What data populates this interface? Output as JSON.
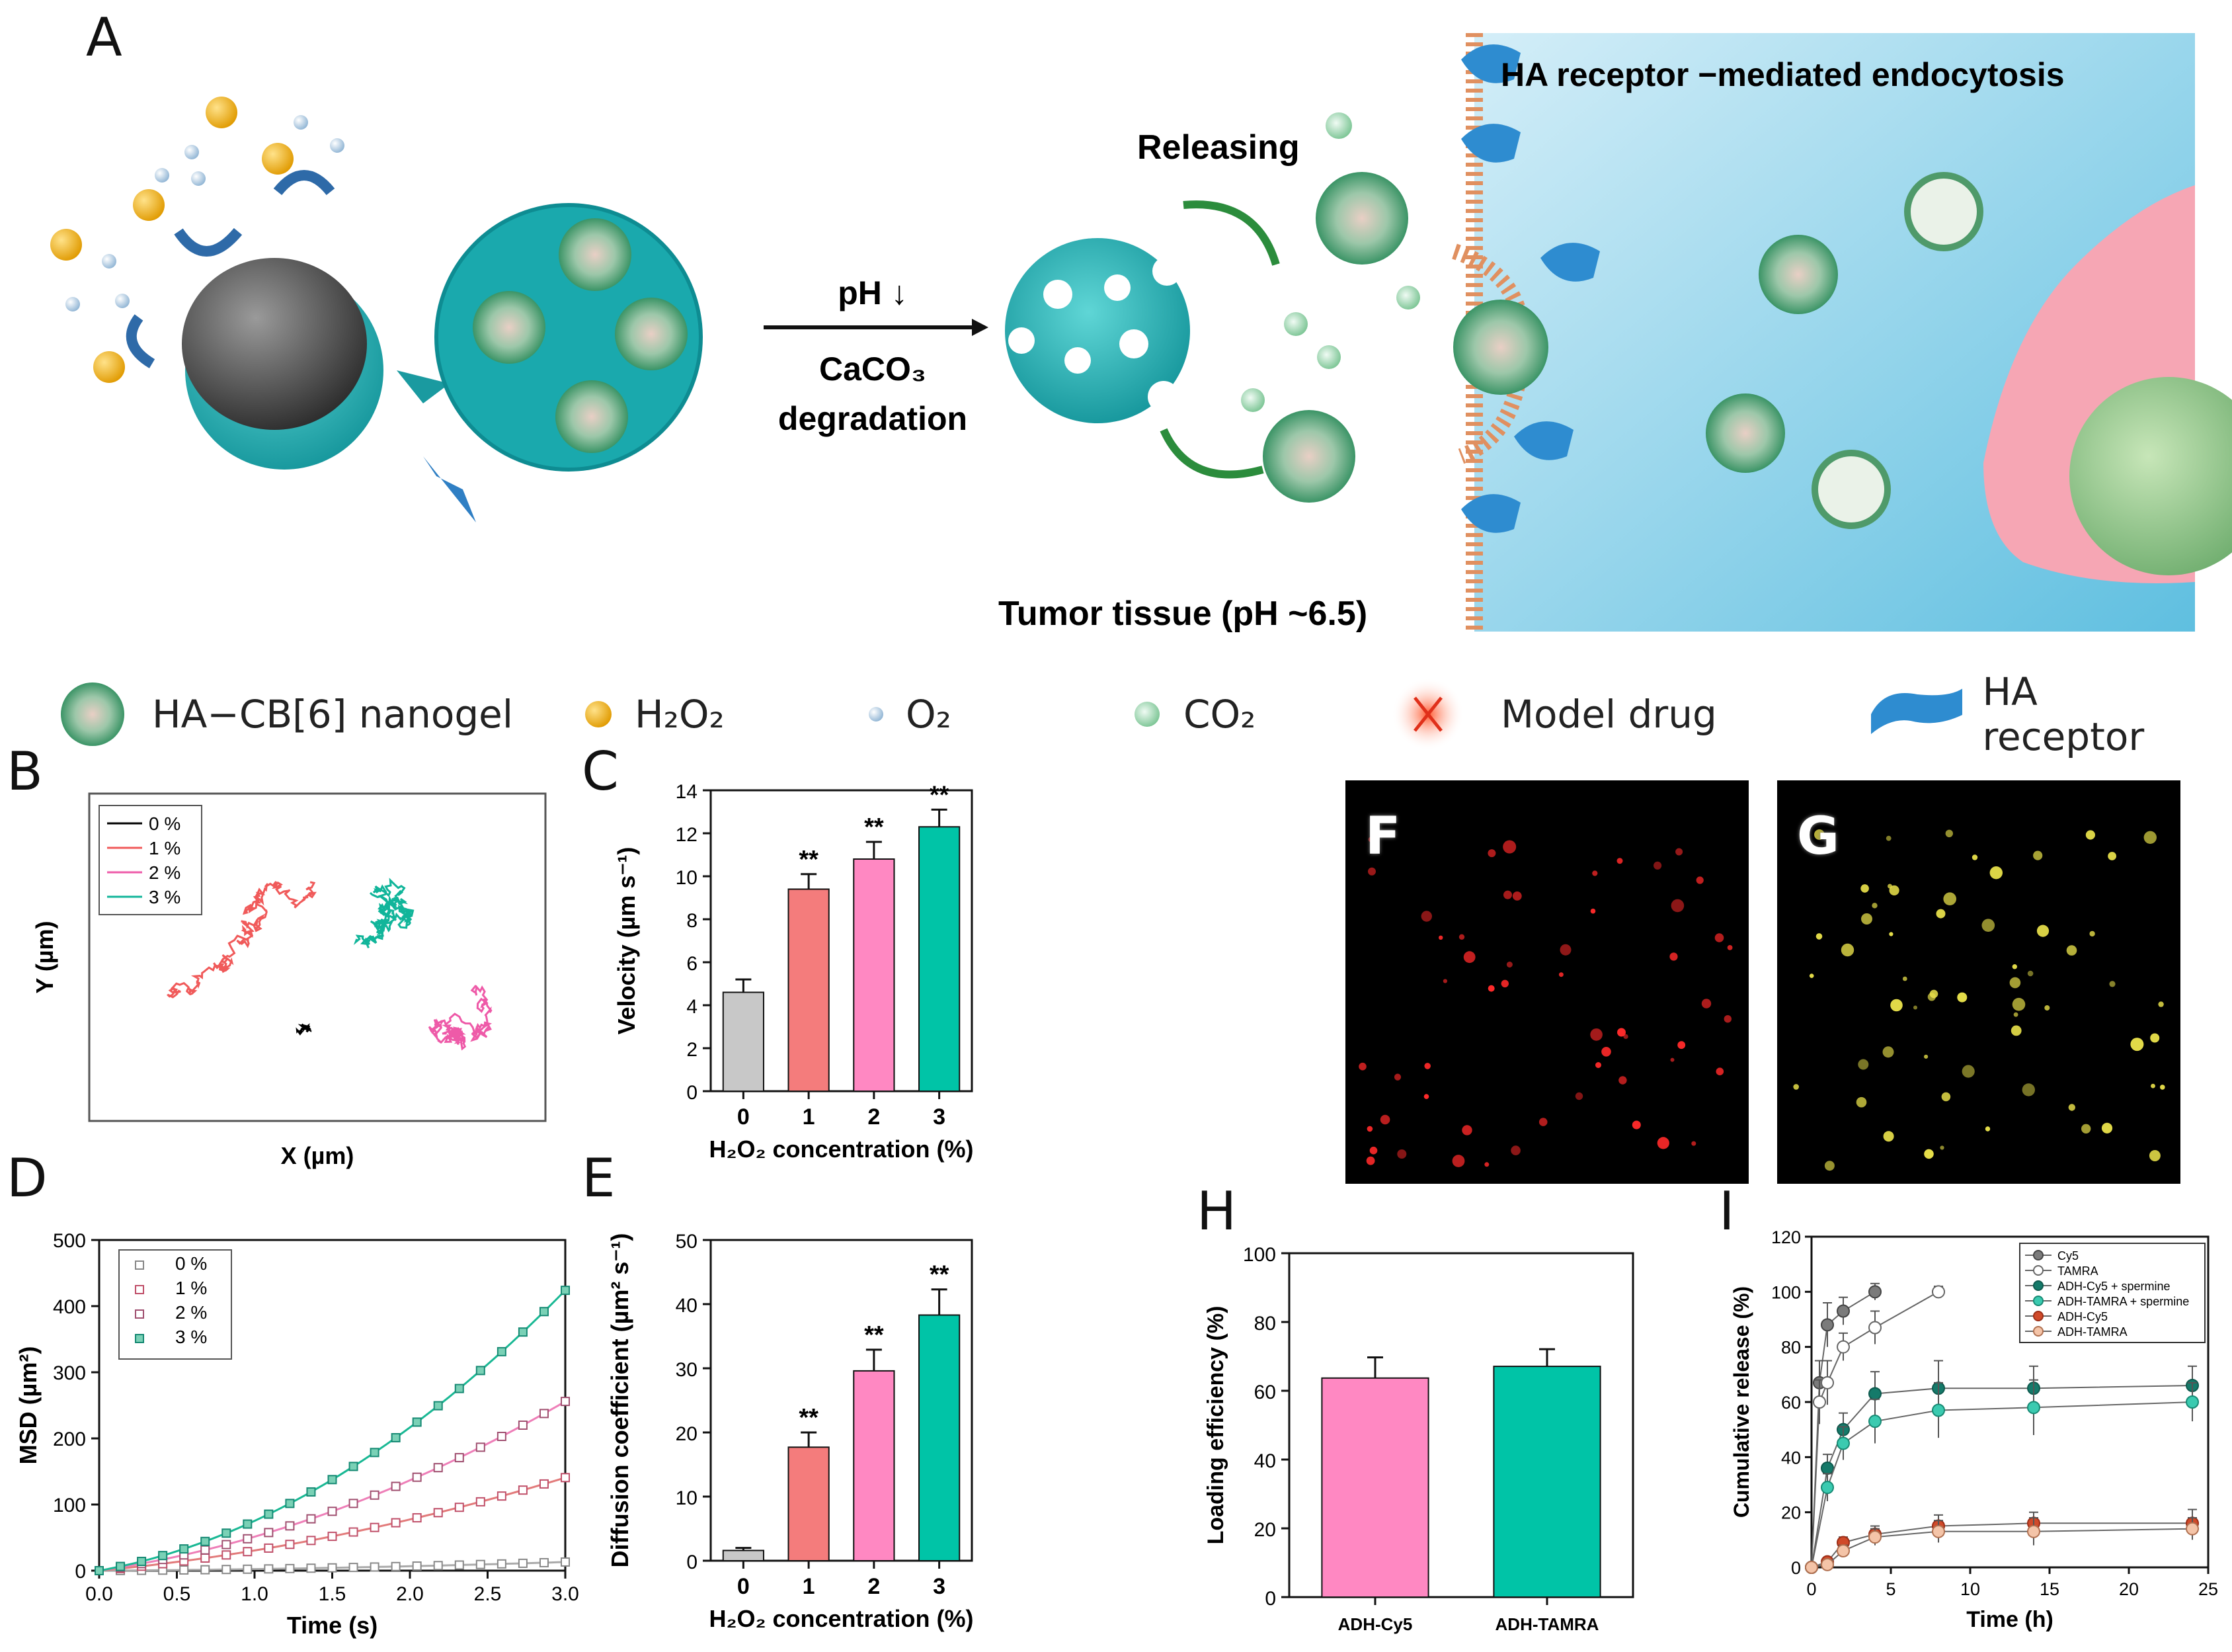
{
  "panel_labels": {
    "A": "A",
    "B": "B",
    "C": "C",
    "D": "D",
    "E": "E",
    "F": "F",
    "G": "G",
    "H": "H",
    "I": "I"
  },
  "schematic": {
    "arrow_top": "pH ↓",
    "arrow_bottom_1": "CaCO₃",
    "arrow_bottom_2": "degradation",
    "releasing": "Releasing",
    "endocytosis": "HA receptor −mediated endocytosis",
    "tumor": "Tumor tissue (pH ~6.5)"
  },
  "legend": {
    "nanogel": "HA−CB[6] nanogel",
    "h2o2": "H₂O₂",
    "o2": "O₂",
    "co2": "CO₂",
    "drug": "Model drug",
    "receptor": "HA receptor"
  },
  "colors": {
    "gray": "#c8c8c8",
    "red": "#f47c7c",
    "pink": "#ff88c2",
    "teal": "#00c4a7",
    "black": "#000000",
    "trace_red": "#f05a5a",
    "trace_pink": "#ee5aa8",
    "trace_teal": "#11b59a"
  },
  "chart_data": [
    {
      "id": "B",
      "type": "trajectory",
      "xlabel": "X (µm)",
      "ylabel": "Y (µm)",
      "legend": [
        "0 %",
        "1 %",
        "2 %",
        "3 %"
      ]
    },
    {
      "id": "C",
      "type": "bar",
      "categories": [
        "0",
        "1",
        "2",
        "3"
      ],
      "values": [
        4.6,
        9.4,
        10.8,
        12.3
      ],
      "errors": [
        0.6,
        0.7,
        0.8,
        0.8
      ],
      "sig": [
        "",
        "**",
        "**",
        "**"
      ],
      "ylim": [
        0,
        14
      ],
      "yticks": [
        0,
        2,
        4,
        6,
        8,
        10,
        12,
        14
      ],
      "ylabel": "Velocity (µm s⁻¹)",
      "xlabel": "H₂O₂ concentration (%)"
    },
    {
      "id": "D",
      "type": "scatter",
      "xlabel": "Time (s)",
      "ylabel": "MSD (µm²)",
      "xlim": [
        0,
        3.0
      ],
      "ylim": [
        0,
        500
      ],
      "xticks": [
        "0.0",
        "0.5",
        "1.0",
        "1.5",
        "2.0",
        "2.5",
        "3.0"
      ],
      "yticks": [
        0,
        100,
        200,
        300,
        400,
        500
      ],
      "series": [
        {
          "name": "0 %",
          "a": 1.0,
          "b": 1.35
        },
        {
          "name": "1 %",
          "a": 8.2,
          "b": 22.3
        },
        {
          "name": "2 %",
          "a": 17.0,
          "b": 34.3
        },
        {
          "name": "3 %",
          "a": 33.0,
          "b": 42.3
        }
      ]
    },
    {
      "id": "E",
      "type": "bar",
      "categories": [
        "0",
        "1",
        "2",
        "3"
      ],
      "values": [
        1.6,
        17.7,
        29.6,
        38.3
      ],
      "errors": [
        0.4,
        2.3,
        3.3,
        4.0
      ],
      "sig": [
        "",
        "**",
        "**",
        "**"
      ],
      "ylim": [
        0,
        50
      ],
      "yticks": [
        0,
        10,
        20,
        30,
        40,
        50
      ],
      "ylabel": "Diffusion coefficient (µm² s⁻¹)",
      "xlabel": "H₂O₂ concentration (%)"
    },
    {
      "id": "H",
      "type": "bar",
      "categories": [
        "ADH-Cy5",
        "ADH-TAMRA"
      ],
      "values": [
        63.7,
        67.1
      ],
      "errors": [
        6.0,
        5.0
      ],
      "ylim": [
        0,
        100
      ],
      "yticks": [
        0,
        20,
        40,
        60,
        80,
        100
      ],
      "ylabel": "Loading efficiency (%)",
      "xlabel": ""
    },
    {
      "id": "I",
      "type": "line",
      "xlabel": "Time (h)",
      "ylabel": "Cumulative release (%)",
      "xlim": [
        0,
        25
      ],
      "ylim": [
        0,
        120
      ],
      "xticks": [
        0,
        5,
        10,
        15,
        20,
        25
      ],
      "yticks": [
        0,
        20,
        40,
        60,
        80,
        100,
        120
      ],
      "series": [
        {
          "name": "Cy5",
          "x": [
            0,
            0.5,
            1,
            2,
            4
          ],
          "y": [
            0,
            67,
            88,
            93,
            100
          ],
          "err": [
            0,
            8,
            8,
            5,
            3
          ]
        },
        {
          "name": "TAMRA",
          "x": [
            0,
            0.5,
            1,
            2,
            4,
            8
          ],
          "y": [
            0,
            60,
            67,
            80,
            87,
            100
          ],
          "err": [
            0,
            8,
            8,
            5,
            6,
            2
          ]
        },
        {
          "name": "ADH-Cy5 + spermine",
          "x": [
            0,
            1,
            2,
            4,
            8,
            14,
            24
          ],
          "y": [
            0,
            36,
            50,
            63,
            65,
            65,
            66
          ],
          "err": [
            0,
            5,
            6,
            8,
            10,
            8,
            7
          ]
        },
        {
          "name": "ADH-TAMRA + spermine",
          "x": [
            0,
            1,
            2,
            4,
            8,
            14,
            24
          ],
          "y": [
            0,
            29,
            45,
            53,
            57,
            58,
            60
          ],
          "err": [
            0,
            5,
            6,
            8,
            10,
            10,
            7
          ]
        },
        {
          "name": "ADH-Cy5",
          "x": [
            0,
            1,
            2,
            4,
            8,
            14,
            24
          ],
          "y": [
            0,
            2,
            9,
            12,
            15,
            16,
            16
          ],
          "err": [
            0,
            1,
            2,
            3,
            4,
            4,
            5
          ]
        },
        {
          "name": "ADH-TAMRA",
          "x": [
            0,
            1,
            2,
            4,
            8,
            14,
            24
          ],
          "y": [
            0,
            1,
            6,
            11,
            13,
            13,
            14
          ],
          "err": [
            0,
            1,
            2,
            3,
            4,
            5,
            4
          ]
        }
      ]
    }
  ]
}
